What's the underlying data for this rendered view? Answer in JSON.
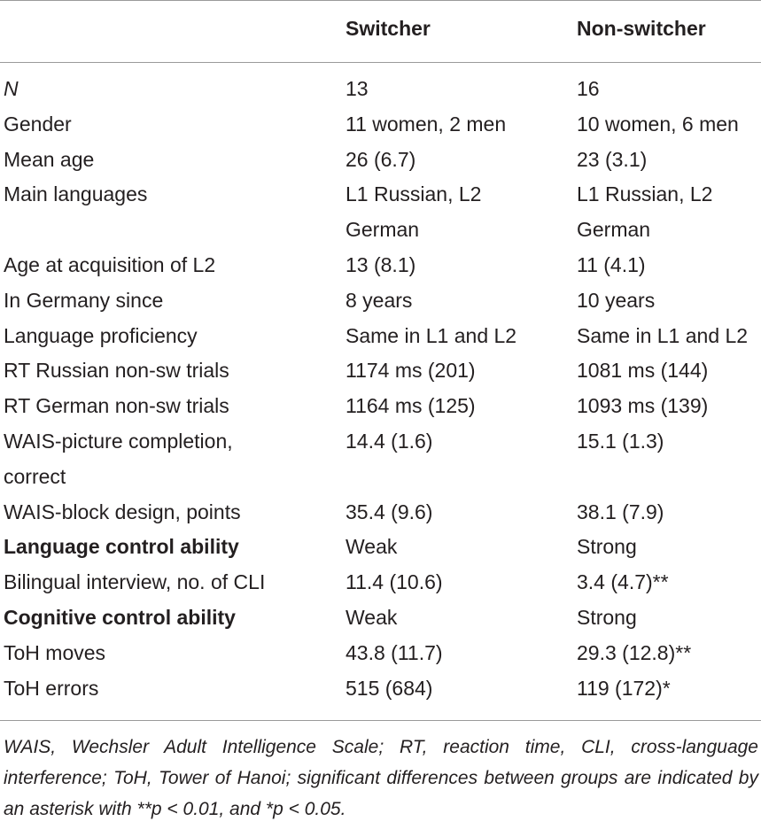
{
  "header": {
    "col_label": "",
    "col_switcher": "Switcher",
    "col_nonswitcher": "Non-switcher"
  },
  "rows": [
    {
      "label": "N",
      "switcher": "13",
      "nonswitcher": "16"
    },
    {
      "label": "Gender",
      "switcher": "11 women, 2 men",
      "nonswitcher": "10 women, 6 men"
    },
    {
      "label": "Mean age",
      "switcher": "26 (6.7)",
      "nonswitcher": "23 (3.1)"
    },
    {
      "label": "Main languages",
      "switcher": "L1 Russian, L2 German",
      "nonswitcher": "L1 Russian, L2 German"
    },
    {
      "label": "Age at acquisition of L2",
      "switcher": "13 (8.1)",
      "nonswitcher": "11 (4.1)"
    },
    {
      "label": "In Germany since",
      "switcher": "8 years",
      "nonswitcher": "10 years"
    },
    {
      "label": "Language proficiency",
      "switcher": "Same in L1 and L2",
      "nonswitcher": "Same in L1 and L2"
    },
    {
      "label": "RT Russian non-sw trials",
      "switcher": "1174 ms (201)",
      "nonswitcher": "1081 ms (144)"
    },
    {
      "label": "RT German non-sw trials",
      "switcher": "1164 ms (125)",
      "nonswitcher": "1093 ms (139)"
    },
    {
      "label": "WAIS-picture completion, correct",
      "switcher": "14.4 (1.6)",
      "nonswitcher": "15.1 (1.3)"
    },
    {
      "label": "WAIS-block design, points",
      "switcher": "35.4 (9.6)",
      "nonswitcher": "38.1 (7.9)"
    },
    {
      "label": "Language control ability",
      "switcher": "Weak",
      "nonswitcher": "Strong"
    },
    {
      "label": "Bilingual interview, no. of CLI",
      "switcher": "11.4 (10.6)",
      "nonswitcher": "3.4 (4.7)**"
    },
    {
      "label": "Cognitive control ability",
      "switcher": "Weak",
      "nonswitcher": "Strong"
    },
    {
      "label": "ToH moves",
      "switcher": "43.8 (11.7)",
      "nonswitcher": "29.3 (12.8)**"
    },
    {
      "label": "ToH errors",
      "switcher": "515 (684)",
      "nonswitcher": "119 (172)*"
    }
  ],
  "footnote": "WAIS, Wechsler Adult Intelligence Scale; RT, reaction time, CLI, cross-language interference; ToH, Tower of Hanoi; significant differences between groups are indicated by an asterisk with **p < 0.01, and *p < 0.05."
}
